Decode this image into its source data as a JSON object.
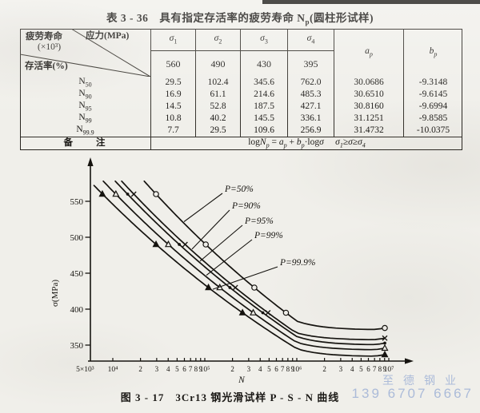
{
  "page_title": {
    "pre": "表 3 - 36　具有指定存活率的疲劳寿命 N",
    "sub": "p",
    "post": "(圆柱形试样)"
  },
  "table": {
    "corner": {
      "fatigue_life": "疲劳寿命",
      "unit": "(×10³)",
      "stress": "应力(MPa)",
      "survival": "存活率(%)"
    },
    "stress_cols": [
      {
        "sym": "σ",
        "sub": "1",
        "value": "560"
      },
      {
        "sym": "σ",
        "sub": "2",
        "value": "490"
      },
      {
        "sym": "σ",
        "sub": "3",
        "value": "430"
      },
      {
        "sym": "σ",
        "sub": "4",
        "value": "395"
      }
    ],
    "coef_cols": [
      {
        "sym": "a",
        "sub": "p"
      },
      {
        "sym": "b",
        "sub": "p"
      }
    ],
    "rows": [
      {
        "base": "N",
        "sub": "50",
        "values": [
          "29.5",
          "102.4",
          "345.6",
          "762.0",
          "30.0686",
          "-9.3148"
        ]
      },
      {
        "base": "N",
        "sub": "90",
        "values": [
          "16.9",
          "61.1",
          "214.6",
          "485.3",
          "30.6510",
          "-9.6145"
        ]
      },
      {
        "base": "N",
        "sub": "95",
        "values": [
          "14.5",
          "52.8",
          "187.5",
          "427.1",
          "30.8160",
          "-9.6994"
        ]
      },
      {
        "base": "N",
        "sub": "99",
        "values": [
          "10.8",
          "40.2",
          "145.5",
          "336.1",
          "31.1251",
          "-9.8585"
        ]
      },
      {
        "base": "N",
        "sub": "99.9",
        "values": [
          "7.7",
          "29.5",
          "109.6",
          "256.9",
          "31.4732",
          "-10.0375"
        ]
      }
    ],
    "remark_label": "备　　注",
    "formula_tokens": [
      {
        "t": "log"
      },
      {
        "t": "N",
        "i": 1
      },
      {
        "t": "p",
        "s": 1
      },
      {
        "t": " = "
      },
      {
        "t": "a",
        "i": 1
      },
      {
        "t": "p",
        "s": 1
      },
      {
        "t": " + "
      },
      {
        "t": "b",
        "i": 1
      },
      {
        "t": "p",
        "s": 1
      },
      {
        "t": "·log"
      },
      {
        "t": "σ",
        "i": 1
      },
      {
        "t": "　 "
      },
      {
        "t": "σ",
        "i": 1
      },
      {
        "t": "1",
        "s": 1
      },
      {
        "t": "≥"
      },
      {
        "t": "σ",
        "i": 1
      },
      {
        "t": "≥"
      },
      {
        "t": "σ",
        "i": 1
      },
      {
        "t": "4",
        "s": 1
      }
    ]
  },
  "chart_data": {
    "type": "line",
    "title": "P-S-N curves of 3Cr13 steel smooth specimens",
    "xlabel": "N",
    "ylabel": "σ(MPa)",
    "x_scale": "log",
    "x_range": [
      5000,
      10000000
    ],
    "y_ticks": [
      350,
      400,
      450,
      500,
      550
    ],
    "x_ticks": [
      {
        "v": 5000,
        "label": "5×10³"
      },
      {
        "v": 10000,
        "label": "10⁴"
      },
      {
        "v": 20000,
        "label": "2"
      },
      {
        "v": 30000,
        "label": "3"
      },
      {
        "v": 40000,
        "label": "4"
      },
      {
        "v": 50000,
        "label": "5"
      },
      {
        "v": 60000,
        "label": "6"
      },
      {
        "v": 70000,
        "label": "7"
      },
      {
        "v": 80000,
        "label": "8"
      },
      {
        "v": 90000,
        "label": "9"
      },
      {
        "v": 100000,
        "label": "10⁵"
      },
      {
        "v": 200000,
        "label": "2"
      },
      {
        "v": 300000,
        "label": "3"
      },
      {
        "v": 400000,
        "label": "4"
      },
      {
        "v": 500000,
        "label": "5"
      },
      {
        "v": 600000,
        "label": "6"
      },
      {
        "v": 700000,
        "label": "7"
      },
      {
        "v": 800000,
        "label": "8"
      },
      {
        "v": 900000,
        "label": "9"
      },
      {
        "v": 1000000,
        "label": "10⁶"
      },
      {
        "v": 2000000,
        "label": "2"
      },
      {
        "v": 3000000,
        "label": "3"
      },
      {
        "v": 4000000,
        "label": "4"
      },
      {
        "v": 5000000,
        "label": "5"
      },
      {
        "v": 6000000,
        "label": "6"
      },
      {
        "v": 7000000,
        "label": "7"
      },
      {
        "v": 8000000,
        "label": "8"
      },
      {
        "v": 9000000,
        "label": "9"
      },
      {
        "v": 10000000,
        "label": "10⁷"
      }
    ],
    "stress_levels_mpa": [
      560,
      490,
      430,
      395
    ],
    "series": [
      {
        "name": "P=50%",
        "marker": "circle-open",
        "a_p": 30.0686,
        "b_p": -9.3148,
        "N_at_stress_x1000": [
          29.5,
          102.4,
          345.6,
          762.0
        ],
        "plateau_sigma": 371
      },
      {
        "name": "P=90%",
        "marker": "x",
        "a_p": 30.651,
        "b_p": -9.6145,
        "N_at_stress_x1000": [
          16.9,
          61.1,
          214.6,
          485.3
        ],
        "plateau_sigma": 357
      },
      {
        "name": "P=95%",
        "marker": "dot",
        "a_p": 30.816,
        "b_p": -9.6994,
        "N_at_stress_x1000": [
          14.5,
          52.8,
          187.5,
          427.1
        ],
        "plateau_sigma": 350
      },
      {
        "name": "P=99%",
        "marker": "triangle-open",
        "a_p": 31.1251,
        "b_p": -9.8585,
        "N_at_stress_x1000": [
          10.8,
          40.2,
          145.5,
          336.1
        ],
        "plateau_sigma": 343
      },
      {
        "name": "P=99.9%",
        "marker": "triangle-filled",
        "a_p": 31.4732,
        "b_p": -10.0375,
        "N_at_stress_x1000": [
          7.7,
          29.5,
          109.6,
          256.9
        ],
        "plateau_sigma": 334
      }
    ],
    "curve_labels": [
      {
        "text": "P=50%",
        "series": 0,
        "lx": 221,
        "ly": 48,
        "tx": 170
      },
      {
        "text": "P=90%",
        "series": 1,
        "lx": 230,
        "ly": 69,
        "tx": 180
      },
      {
        "text": "P=95%",
        "series": 2,
        "lx": 246,
        "ly": 88,
        "tx": 190
      },
      {
        "text": "P=99%",
        "series": 3,
        "lx": 258,
        "ly": 106,
        "tx": 198
      },
      {
        "text": "P=99.9%",
        "series": 4,
        "lx": 290,
        "ly": 140,
        "tx": 206
      }
    ],
    "legend_position": "inline-labels",
    "grid": false
  },
  "caption": "图 3 - 17　3Cr13 钢光滑试样 P - S - N 曲线",
  "watermark": {
    "company": "至德钢业",
    "phone": "139 6707 6667"
  }
}
